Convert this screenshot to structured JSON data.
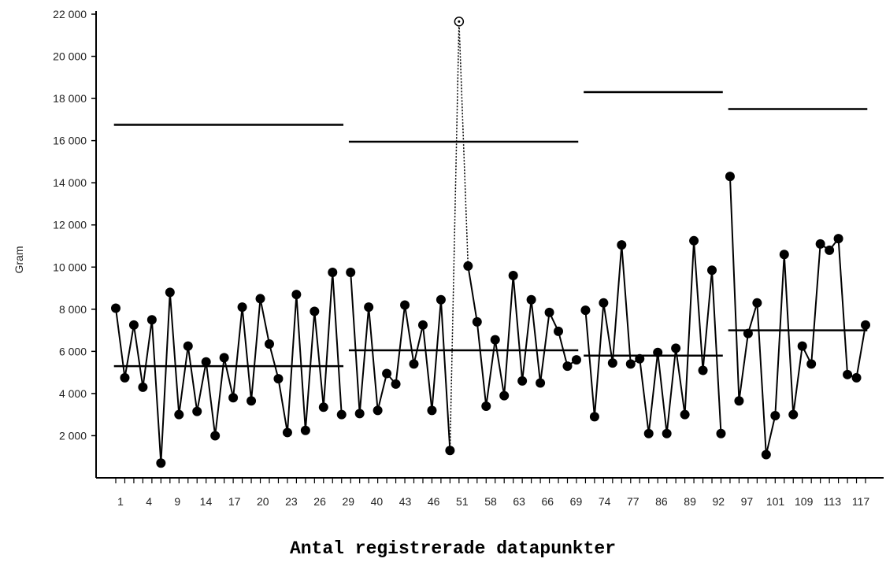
{
  "chart_data": {
    "type": "line",
    "title": "",
    "xlabel": "Antal registrerade datapunkter",
    "ylabel": "Gram",
    "ylim": [
      0,
      22000
    ],
    "y_ticks": [
      "2 000",
      "4 000",
      "6 000",
      "8 000",
      "10 000",
      "12 000",
      "14 000",
      "16 000",
      "18 000",
      "20 000",
      "22 000"
    ],
    "x_tick_labels": [
      "1",
      "4",
      "9",
      "14",
      "17",
      "20",
      "23",
      "26",
      "29",
      "40",
      "43",
      "46",
      "51",
      "58",
      "63",
      "66",
      "69",
      "74",
      "77",
      "86",
      "89",
      "92",
      "97",
      "101",
      "109",
      "113",
      "117"
    ],
    "grid": false,
    "legend": "none",
    "segments": [
      {
        "values": [
          8050,
          4750,
          7250,
          4300,
          7500,
          700,
          8800,
          3000,
          6250,
          3150,
          5500,
          2000,
          5700,
          3800,
          8100,
          3650,
          8500,
          6350,
          4700,
          2150,
          8700,
          2250,
          7900,
          3350,
          9750,
          3000
        ],
        "mean": 5300,
        "upper_limit": 16750
      },
      {
        "values": [
          9750,
          3050,
          8100,
          3200,
          4950,
          4450,
          8200,
          5400,
          7250,
          3200,
          8450,
          1300,
          21650,
          10050,
          7400,
          3400,
          6550,
          3900,
          9600,
          4600,
          8450,
          4500,
          7850,
          6950,
          5300,
          5600
        ],
        "mean": 6050,
        "upper_limit": 15950,
        "excluded": 12
      },
      {
        "values": [
          7950,
          2900,
          8300,
          5450,
          11050,
          5400,
          5650,
          2100,
          5950,
          2100,
          6150,
          3000,
          11250,
          5100,
          9850,
          2100
        ],
        "mean": 5800,
        "upper_limit": 18300
      },
      {
        "values": [
          14300,
          3650,
          6850,
          8300,
          1100,
          2950,
          10600,
          3000,
          6250,
          5400,
          11100,
          10800,
          11350,
          4900,
          4750,
          7250
        ],
        "mean": 7000,
        "upper_limit": 17500
      }
    ]
  },
  "colors": {
    "line": "#000000",
    "axis": "#000000"
  }
}
